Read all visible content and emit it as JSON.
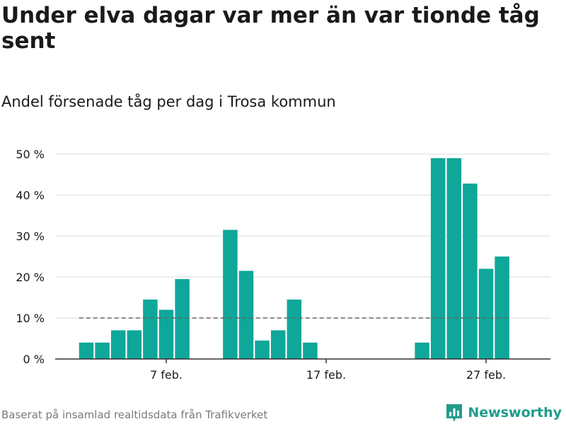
{
  "header": {
    "title": "Under elva dagar var mer än var tionde tåg sent",
    "subtitle": "Andel försenade tåg per dag i Trosa kommun"
  },
  "footer": {
    "source": "Baserat på insamlad realtidsdata från Trafikverket",
    "brand": "Newsworthy"
  },
  "colors": {
    "bar": "#0ea79a",
    "reference_line": "#666666",
    "grid": "#dddddd",
    "brand": "#1f9c8c"
  },
  "icons": {
    "brand": "bar-chart-logo-icon"
  },
  "chart_data": {
    "type": "bar",
    "x": [
      "2 feb.",
      "3 feb.",
      "4 feb.",
      "5 feb.",
      "6 feb.",
      "7 feb.",
      "8 feb.",
      "9 feb.",
      "10 feb.",
      "11 feb.",
      "12 feb.",
      "13 feb.",
      "14 feb.",
      "15 feb.",
      "16 feb.",
      "17 feb.",
      "18 feb.",
      "19 feb.",
      "20 feb.",
      "21 feb.",
      "22 feb.",
      "23 feb.",
      "24 feb.",
      "25 feb.",
      "26 feb.",
      "27 feb.",
      "28 feb."
    ],
    "values": [
      4,
      4,
      7,
      7,
      14.5,
      12,
      19.5,
      0,
      0,
      31.5,
      21.5,
      4.5,
      7,
      14.5,
      4,
      0,
      0,
      0,
      0,
      0,
      0,
      4,
      49,
      49,
      42.8,
      22,
      25
    ],
    "x_ticks": [
      "7 feb.",
      "17 feb.",
      "27 feb."
    ],
    "y_ticks": [
      "0 %",
      "10 %",
      "20 %",
      "30 %",
      "40 %",
      "50 %"
    ],
    "ylim": [
      0,
      50
    ],
    "reference_line": 10,
    "grid": true
  }
}
